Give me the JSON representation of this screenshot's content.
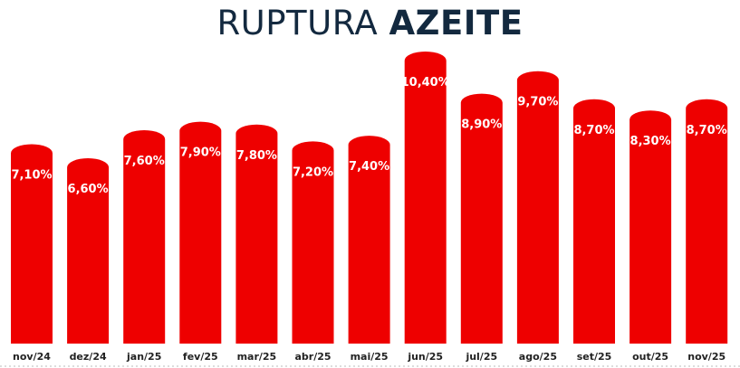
{
  "title": {
    "part1": "RUPTURA",
    "part2": "AZEITE"
  },
  "colors": {
    "bar": "#ee0000",
    "title": "#13293f"
  },
  "chart_data": {
    "type": "bar",
    "title": "RUPTURA AZEITE",
    "categories": [
      "nov/24",
      "dez/24",
      "jan/25",
      "fev/25",
      "mar/25",
      "abr/25",
      "mai/25",
      "jun/25",
      "jul/25",
      "ago/25",
      "set/25",
      "out/25",
      "nov/25"
    ],
    "values": [
      7.1,
      6.6,
      7.6,
      7.9,
      7.8,
      7.2,
      7.4,
      10.4,
      8.9,
      9.7,
      8.7,
      8.3,
      8.7
    ],
    "labels": [
      "7,10%",
      "6,60%",
      "7,60%",
      "7,90%",
      "7,80%",
      "7,20%",
      "7,40%",
      "10,40%",
      "8,90%",
      "9,70%",
      "8,70%",
      "8,30%",
      "8,70%"
    ],
    "ylim": [
      0,
      11
    ],
    "grid": false,
    "legend": "none",
    "xlabel": "",
    "ylabel": ""
  }
}
